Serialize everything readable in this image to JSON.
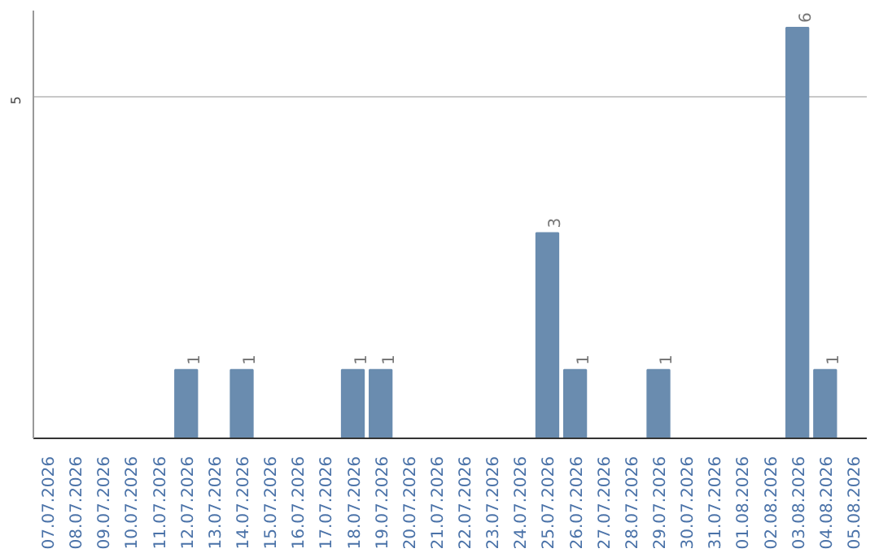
{
  "chart_data": {
    "type": "bar",
    "categories": [
      "07.07.2026",
      "08.07.2026",
      "09.07.2026",
      "10.07.2026",
      "11.07.2026",
      "12.07.2026",
      "13.07.2026",
      "14.07.2026",
      "15.07.2026",
      "16.07.2026",
      "17.07.2026",
      "18.07.2026",
      "19.07.2026",
      "20.07.2026",
      "21.07.2026",
      "22.07.2026",
      "23.07.2026",
      "24.07.2026",
      "25.07.2026",
      "26.07.2026",
      "27.07.2026",
      "28.07.2026",
      "29.07.2026",
      "30.07.2026",
      "31.07.2026",
      "01.08.2026",
      "02.08.2026",
      "03.08.2026",
      "04.08.2026",
      "05.08.2026"
    ],
    "values": [
      0,
      0,
      0,
      0,
      0,
      1,
      0,
      1,
      0,
      0,
      0,
      1,
      1,
      0,
      0,
      0,
      0,
      0,
      3,
      1,
      0,
      0,
      1,
      0,
      0,
      0,
      0,
      6,
      1,
      0
    ],
    "value_labels": [
      null,
      null,
      null,
      null,
      null,
      "1",
      null,
      "1",
      null,
      null,
      null,
      "1",
      "1",
      null,
      null,
      null,
      null,
      null,
      "3",
      "1",
      null,
      null,
      "1",
      null,
      null,
      null,
      null,
      "6",
      "1",
      null
    ],
    "color": "#6a8caf",
    "ylim": [
      0,
      6.25
    ],
    "yticks": [
      5
    ],
    "grid": "y"
  }
}
